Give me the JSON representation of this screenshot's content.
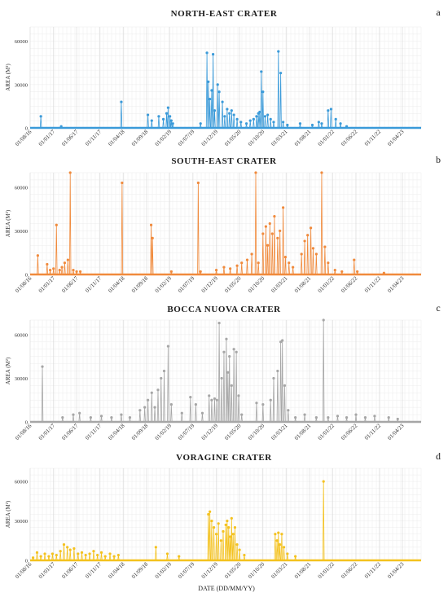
{
  "figure": {
    "xlabel": "DATE (DD/MM/YY)"
  },
  "chart_data": [
    {
      "type": "line",
      "letter": "a",
      "title": "NORTH-EAST CRATER",
      "ylabel": "AREA (M²)",
      "color": "#3a9ad9",
      "ylim": [
        0,
        70000
      ],
      "yticks": [
        0,
        30000,
        60000
      ],
      "xlim": [
        "2016-08-01",
        "2023-08-01"
      ],
      "xticks": [
        "01/08/16",
        "01/01/17",
        "01/06/17",
        "01/11/17",
        "01/04/18",
        "01/09/18",
        "01/02/19",
        "01/07/19",
        "01/12/19",
        "01/05/20",
        "01/10/20",
        "01/03/21",
        "01/08/21",
        "01/01/22",
        "01/06/22",
        "01/11/22",
        "01/04/23"
      ],
      "points": [
        [
          "2016-10-10",
          8000
        ],
        [
          "2017-02-20",
          1000
        ],
        [
          "2018-03-20",
          18000
        ],
        [
          "2018-09-10",
          9000
        ],
        [
          "2018-10-05",
          5000
        ],
        [
          "2018-11-20",
          8000
        ],
        [
          "2018-12-20",
          6000
        ],
        [
          "2019-01-10",
          10000
        ],
        [
          "2019-01-20",
          14000
        ],
        [
          "2019-02-01",
          8000
        ],
        [
          "2019-02-10",
          5000
        ],
        [
          "2019-02-20",
          3000
        ],
        [
          "2019-08-20",
          3000
        ],
        [
          "2019-10-01",
          52000
        ],
        [
          "2019-10-10",
          32000
        ],
        [
          "2019-10-20",
          20000
        ],
        [
          "2019-11-01",
          26000
        ],
        [
          "2019-11-10",
          51000
        ],
        [
          "2019-11-20",
          12000
        ],
        [
          "2019-12-10",
          30000
        ],
        [
          "2019-12-20",
          25000
        ],
        [
          "2020-01-10",
          18000
        ],
        [
          "2020-01-25",
          8000
        ],
        [
          "2020-02-10",
          13000
        ],
        [
          "2020-02-25",
          10000
        ],
        [
          "2020-03-10",
          12000
        ],
        [
          "2020-03-25",
          9000
        ],
        [
          "2020-04-15",
          6000
        ],
        [
          "2020-05-10",
          4000
        ],
        [
          "2020-06-15",
          3000
        ],
        [
          "2020-07-10",
          5000
        ],
        [
          "2020-08-01",
          6000
        ],
        [
          "2020-08-20",
          8000
        ],
        [
          "2020-09-01",
          10000
        ],
        [
          "2020-09-10",
          11000
        ],
        [
          "2020-09-20",
          39000
        ],
        [
          "2020-10-01",
          25000
        ],
        [
          "2020-10-15",
          8000
        ],
        [
          "2020-11-01",
          9000
        ],
        [
          "2020-11-20",
          6000
        ],
        [
          "2020-12-10",
          4000
        ],
        [
          "2021-01-10",
          53000
        ],
        [
          "2021-01-25",
          38000
        ],
        [
          "2021-02-10",
          4000
        ],
        [
          "2021-03-10",
          2000
        ],
        [
          "2021-06-01",
          3000
        ],
        [
          "2021-08-20",
          2000
        ],
        [
          "2021-10-01",
          4000
        ],
        [
          "2021-10-20",
          3000
        ],
        [
          "2021-12-01",
          12000
        ],
        [
          "2021-12-20",
          13000
        ],
        [
          "2022-01-20",
          6000
        ],
        [
          "2022-02-20",
          3000
        ],
        [
          "2022-04-01",
          1000
        ]
      ]
    },
    {
      "type": "line",
      "letter": "b",
      "title": "SOUTH-EAST CRATER",
      "ylabel": "AREA (M²)",
      "color": "#f08a3c",
      "ylim": [
        0,
        70000
      ],
      "yticks": [
        0,
        30000,
        60000
      ],
      "xlim": [
        "2016-08-01",
        "2023-08-01"
      ],
      "xticks": [
        "01/08/16",
        "01/01/17",
        "01/06/17",
        "01/11/17",
        "01/04/18",
        "01/09/18",
        "01/02/19",
        "01/07/19",
        "01/12/19",
        "01/05/20",
        "01/10/20",
        "01/03/21",
        "01/08/21",
        "01/01/22",
        "01/06/22",
        "01/11/22",
        "01/04/23"
      ],
      "points": [
        [
          "2016-09-20",
          13000
        ],
        [
          "2016-11-20",
          7000
        ],
        [
          "2016-12-10",
          3000
        ],
        [
          "2017-01-01",
          4000
        ],
        [
          "2017-01-20",
          34000
        ],
        [
          "2017-02-10",
          3000
        ],
        [
          "2017-02-25",
          5000
        ],
        [
          "2017-03-15",
          8000
        ],
        [
          "2017-04-05",
          10000
        ],
        [
          "2017-04-20",
          70000
        ],
        [
          "2017-05-10",
          3000
        ],
        [
          "2017-06-01",
          2000
        ],
        [
          "2017-06-25",
          2000
        ],
        [
          "2018-03-25",
          63000
        ],
        [
          "2018-10-01",
          34000
        ],
        [
          "2018-10-10",
          25000
        ],
        [
          "2019-02-10",
          2000
        ],
        [
          "2019-08-05",
          63000
        ],
        [
          "2019-08-20",
          2000
        ],
        [
          "2019-12-01",
          3000
        ],
        [
          "2020-01-20",
          5000
        ],
        [
          "2020-03-01",
          4000
        ],
        [
          "2020-04-15",
          6000
        ],
        [
          "2020-05-15",
          8000
        ],
        [
          "2020-06-20",
          10000
        ],
        [
          "2020-07-20",
          14000
        ],
        [
          "2020-08-15",
          70000
        ],
        [
          "2020-09-01",
          8000
        ],
        [
          "2020-10-01",
          28000
        ],
        [
          "2020-10-20",
          33000
        ],
        [
          "2020-11-01",
          20000
        ],
        [
          "2020-11-15",
          35000
        ],
        [
          "2020-12-01",
          28000
        ],
        [
          "2020-12-15",
          40000
        ],
        [
          "2021-01-05",
          25000
        ],
        [
          "2021-01-20",
          30000
        ],
        [
          "2021-02-10",
          46000
        ],
        [
          "2021-02-25",
          12000
        ],
        [
          "2021-03-20",
          8000
        ],
        [
          "2021-04-15",
          5000
        ],
        [
          "2021-06-10",
          14000
        ],
        [
          "2021-07-01",
          23000
        ],
        [
          "2021-07-20",
          27000
        ],
        [
          "2021-08-10",
          32000
        ],
        [
          "2021-08-25",
          18000
        ],
        [
          "2021-09-15",
          14000
        ],
        [
          "2021-10-20",
          70000
        ],
        [
          "2021-11-10",
          19000
        ],
        [
          "2021-12-01",
          8000
        ],
        [
          "2022-01-15",
          3000
        ],
        [
          "2022-03-01",
          2000
        ],
        [
          "2022-05-20",
          10000
        ],
        [
          "2022-06-10",
          2000
        ],
        [
          "2022-12-01",
          1000
        ]
      ]
    },
    {
      "type": "line",
      "letter": "c",
      "title": "BOCCA NUOVA CRATER",
      "ylabel": "AREA (M²)",
      "color": "#a6a6a6",
      "ylim": [
        0,
        70000
      ],
      "yticks": [
        0,
        30000,
        60000
      ],
      "xlim": [
        "2016-08-01",
        "2023-08-01"
      ],
      "xticks": [
        "01/08/16",
        "01/01/17",
        "01/06/17",
        "01/11/17",
        "01/04/18",
        "01/09/18",
        "01/02/19",
        "01/07/19",
        "01/12/19",
        "01/05/20",
        "01/10/20",
        "01/03/21",
        "01/08/21",
        "01/01/22",
        "01/06/22",
        "01/11/22",
        "01/04/23"
      ],
      "points": [
        [
          "2016-10-20",
          38000
        ],
        [
          "2017-03-01",
          3000
        ],
        [
          "2017-05-10",
          5000
        ],
        [
          "2017-06-20",
          6000
        ],
        [
          "2017-09-01",
          3000
        ],
        [
          "2017-11-10",
          4000
        ],
        [
          "2018-01-15",
          3000
        ],
        [
          "2018-03-20",
          5000
        ],
        [
          "2018-05-15",
          3000
        ],
        [
          "2018-07-20",
          8000
        ],
        [
          "2018-08-20",
          10000
        ],
        [
          "2018-09-10",
          15000
        ],
        [
          "2018-10-05",
          20000
        ],
        [
          "2018-10-25",
          10000
        ],
        [
          "2018-11-15",
          22000
        ],
        [
          "2018-12-05",
          30000
        ],
        [
          "2018-12-25",
          35000
        ],
        [
          "2019-01-20",
          52000
        ],
        [
          "2019-02-10",
          12000
        ],
        [
          "2019-04-20",
          6000
        ],
        [
          "2019-06-15",
          17000
        ],
        [
          "2019-07-20",
          12000
        ],
        [
          "2019-09-01",
          6000
        ],
        [
          "2019-10-15",
          18000
        ],
        [
          "2019-11-01",
          15000
        ],
        [
          "2019-11-20",
          16000
        ],
        [
          "2019-12-05",
          15000
        ],
        [
          "2019-12-20",
          68000
        ],
        [
          "2020-01-05",
          30000
        ],
        [
          "2020-01-20",
          48000
        ],
        [
          "2020-02-05",
          57000
        ],
        [
          "2020-02-15",
          34000
        ],
        [
          "2020-02-25",
          45000
        ],
        [
          "2020-03-10",
          25000
        ],
        [
          "2020-03-25",
          50000
        ],
        [
          "2020-04-10",
          48000
        ],
        [
          "2020-04-25",
          18000
        ],
        [
          "2020-05-15",
          5000
        ],
        [
          "2020-08-20",
          13000
        ],
        [
          "2020-10-01",
          12000
        ],
        [
          "2020-11-20",
          15000
        ],
        [
          "2020-12-10",
          30000
        ],
        [
          "2021-01-05",
          35000
        ],
        [
          "2021-01-25",
          55000
        ],
        [
          "2021-02-05",
          56000
        ],
        [
          "2021-02-20",
          25000
        ],
        [
          "2021-03-15",
          8000
        ],
        [
          "2021-05-01",
          3000
        ],
        [
          "2021-07-01",
          5000
        ],
        [
          "2021-09-15",
          3000
        ],
        [
          "2021-11-01",
          70000
        ],
        [
          "2021-12-01",
          3000
        ],
        [
          "2022-02-01",
          4000
        ],
        [
          "2022-04-01",
          3000
        ],
        [
          "2022-06-01",
          5000
        ],
        [
          "2022-08-01",
          3000
        ],
        [
          "2022-10-01",
          4000
        ],
        [
          "2023-01-01",
          3000
        ],
        [
          "2023-03-01",
          2000
        ]
      ]
    },
    {
      "type": "line",
      "letter": "d",
      "title": "VORAGINE CRATER",
      "ylabel": "AREA (M²)",
      "color": "#f4c21f",
      "ylim": [
        0,
        70000
      ],
      "yticks": [
        0,
        30000,
        60000
      ],
      "xlim": [
        "2016-08-01",
        "2023-08-01"
      ],
      "xticks": [
        "01/08/16",
        "01/01/17",
        "01/06/17",
        "01/11/17",
        "01/04/18",
        "01/09/18",
        "01/02/19",
        "01/07/19",
        "01/12/19",
        "01/05/20",
        "01/10/20",
        "01/03/21",
        "01/08/21",
        "01/01/22",
        "01/06/22",
        "01/11/22",
        "01/04/23"
      ],
      "points": [
        [
          "2016-08-20",
          2000
        ],
        [
          "2016-09-15",
          6000
        ],
        [
          "2016-10-10",
          3000
        ],
        [
          "2016-11-05",
          5000
        ],
        [
          "2016-12-01",
          3000
        ],
        [
          "2016-12-25",
          5000
        ],
        [
          "2017-01-20",
          4000
        ],
        [
          "2017-02-15",
          7000
        ],
        [
          "2017-03-10",
          12000
        ],
        [
          "2017-04-01",
          10000
        ],
        [
          "2017-04-20",
          8000
        ],
        [
          "2017-05-15",
          9000
        ],
        [
          "2017-06-10",
          5000
        ],
        [
          "2017-07-05",
          6000
        ],
        [
          "2017-07-30",
          4000
        ],
        [
          "2017-08-25",
          5000
        ],
        [
          "2017-09-20",
          7000
        ],
        [
          "2017-10-15",
          4000
        ],
        [
          "2017-11-10",
          6000
        ],
        [
          "2017-12-05",
          3000
        ],
        [
          "2018-01-05",
          5000
        ],
        [
          "2018-02-01",
          3000
        ],
        [
          "2018-03-01",
          4000
        ],
        [
          "2018-11-01",
          10000
        ],
        [
          "2019-01-15",
          5000
        ],
        [
          "2019-04-01",
          3000
        ],
        [
          "2019-10-10",
          35000
        ],
        [
          "2019-10-20",
          37000
        ],
        [
          "2019-11-01",
          30000
        ],
        [
          "2019-11-15",
          25000
        ],
        [
          "2019-12-01",
          20000
        ],
        [
          "2019-12-15",
          28000
        ],
        [
          "2020-01-01",
          15000
        ],
        [
          "2020-01-15",
          22000
        ],
        [
          "2020-02-01",
          27000
        ],
        [
          "2020-02-10",
          30000
        ],
        [
          "2020-02-20",
          25000
        ],
        [
          "2020-03-01",
          18000
        ],
        [
          "2020-03-10",
          32000
        ],
        [
          "2020-03-20",
          20000
        ],
        [
          "2020-04-01",
          25000
        ],
        [
          "2020-04-15",
          12000
        ],
        [
          "2020-05-01",
          8000
        ],
        [
          "2020-06-01",
          4000
        ],
        [
          "2020-12-20",
          20000
        ],
        [
          "2021-01-01",
          15000
        ],
        [
          "2021-01-10",
          21000
        ],
        [
          "2021-01-20",
          12000
        ],
        [
          "2021-02-01",
          20000
        ],
        [
          "2021-02-15",
          10000
        ],
        [
          "2021-03-10",
          5000
        ],
        [
          "2021-05-01",
          3000
        ],
        [
          "2021-11-01",
          60000
        ]
      ]
    }
  ]
}
